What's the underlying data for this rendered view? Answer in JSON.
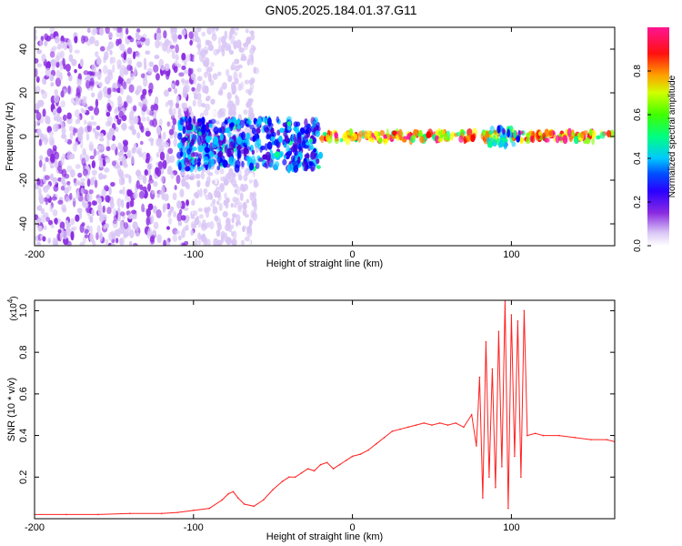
{
  "figure": {
    "title": "GN05.2025.184.01.37.G11"
  },
  "chart_data": [
    {
      "type": "heatmap",
      "title": "GN05.2025.184.01.37.G11",
      "xlabel": "Height of straight line (km)",
      "ylabel": "Frequency (Hz)",
      "xlim": [
        -200,
        165
      ],
      "ylim": [
        -50,
        50
      ],
      "x_ticks": [
        -200,
        -100,
        0,
        100
      ],
      "x_tick_labels": [
        "-200",
        "-100",
        "0",
        "100"
      ],
      "y_ticks": [
        -40,
        -20,
        0,
        20,
        40
      ],
      "y_tick_labels": [
        "-40",
        "-20",
        "0",
        "20",
        "40"
      ],
      "colorbar": {
        "label": "Normalized spectral amplitude",
        "range": [
          0,
          1
        ],
        "ticks": [
          0.0,
          0.2,
          0.4,
          0.6,
          0.8
        ],
        "tick_labels": [
          "0.0",
          "0.2",
          "0.4",
          "0.6",
          "0.8"
        ],
        "colormap": [
          "#ffffff",
          "#d9c6f5",
          "#8a2be2",
          "#4b00d8",
          "#0000ff",
          "#00c8ff",
          "#00ff80",
          "#80ff00",
          "#ffff00",
          "#ff8000",
          "#ff0000",
          "#ff1493"
        ]
      },
      "features": [
        {
          "region": "scattered noise",
          "x_range": [
            -200,
            -100
          ],
          "f_range": [
            -50,
            50
          ],
          "level": 0.15
        },
        {
          "region": "sparse noise",
          "x_range": [
            -100,
            -60
          ],
          "f_range": [
            -50,
            50
          ],
          "level": 0.08
        },
        {
          "region": "emerging signal",
          "x_range": [
            -110,
            -20
          ],
          "f_range": [
            -15,
            8
          ],
          "level": 0.45
        },
        {
          "region": "narrow band",
          "x_range": [
            -20,
            165
          ],
          "f_range": [
            -2,
            2
          ],
          "level": 1.0
        },
        {
          "region": "band widening",
          "x_range": [
            85,
            105
          ],
          "f_range": [
            -4,
            4
          ],
          "level": 0.5
        }
      ]
    },
    {
      "type": "line",
      "xlabel": "Height of straight line (km)",
      "ylabel": "SNR (10 * v/v)",
      "y_multiplier": "(x10",
      "y_multiplier_exp": "4",
      "y_multiplier_close": ")",
      "xlim": [
        -200,
        165
      ],
      "ylim": [
        0,
        1.05
      ],
      "x_ticks": [
        -200,
        -100,
        0,
        100
      ],
      "x_tick_labels": [
        "-200",
        "-100",
        "0",
        "100"
      ],
      "y_ticks": [
        0.2,
        0.4,
        0.6,
        0.8,
        1.0
      ],
      "y_tick_labels": [
        "0.2",
        "0.4",
        "0.6",
        "0.8",
        "1.0"
      ],
      "series": [
        {
          "color": "#ff2020",
          "x": [
            -200,
            -180,
            -160,
            -140,
            -120,
            -110,
            -100,
            -90,
            -82,
            -78,
            -75,
            -72,
            -68,
            -62,
            -56,
            -50,
            -44,
            -40,
            -36,
            -32,
            -28,
            -24,
            -20,
            -16,
            -12,
            -8,
            -4,
            0,
            5,
            10,
            15,
            20,
            25,
            30,
            35,
            40,
            45,
            50,
            55,
            60,
            65,
            70,
            75,
            78,
            80,
            82,
            84,
            86,
            88,
            90,
            92,
            94,
            96,
            98,
            100,
            102,
            104,
            106,
            108,
            110,
            115,
            120,
            130,
            140,
            150,
            160,
            165
          ],
          "y": [
            0.02,
            0.02,
            0.02,
            0.025,
            0.025,
            0.03,
            0.04,
            0.05,
            0.09,
            0.12,
            0.13,
            0.1,
            0.07,
            0.06,
            0.09,
            0.14,
            0.18,
            0.2,
            0.2,
            0.22,
            0.24,
            0.23,
            0.26,
            0.27,
            0.24,
            0.26,
            0.28,
            0.3,
            0.31,
            0.33,
            0.36,
            0.39,
            0.42,
            0.43,
            0.44,
            0.45,
            0.46,
            0.45,
            0.46,
            0.45,
            0.46,
            0.44,
            0.5,
            0.35,
            0.68,
            0.1,
            0.85,
            0.2,
            0.72,
            0.15,
            0.9,
            0.25,
            1.05,
            0.05,
            0.98,
            0.3,
            0.95,
            0.2,
            1.0,
            0.4,
            0.41,
            0.4,
            0.4,
            0.39,
            0.38,
            0.38,
            0.37
          ]
        }
      ]
    }
  ]
}
